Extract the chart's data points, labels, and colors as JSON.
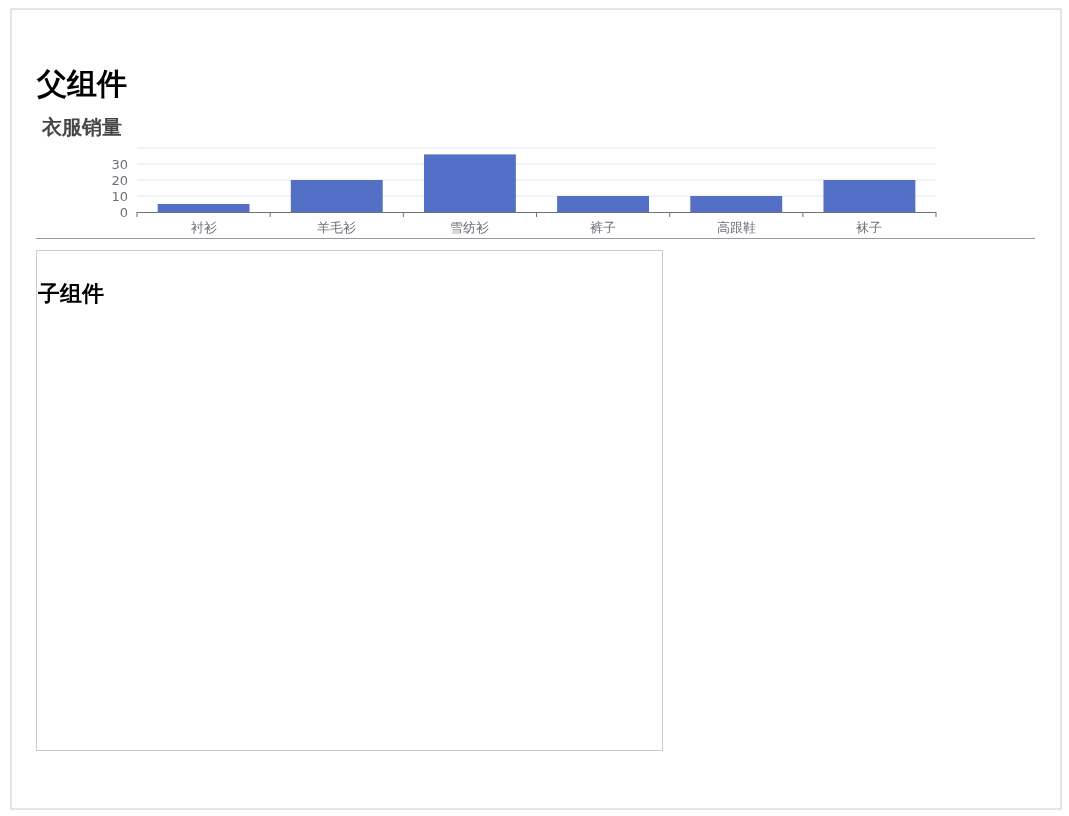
{
  "chart_data": {
    "type": "bar",
    "title": "衣服销量",
    "annotations": [
      "父组件",
      "子组件"
    ],
    "categories": [
      "衬衫",
      "羊毛衫",
      "雪纺衫",
      "裤子",
      "高跟鞋",
      "袜子"
    ],
    "values": [
      5,
      20,
      36,
      10,
      10,
      20
    ],
    "color": "#5470c6",
    "ylim": [
      0,
      40
    ],
    "yticks": [
      0,
      10,
      20,
      30,
      {
        "value": 40,
        "label": null
      }
    ],
    "grid": "y"
  }
}
